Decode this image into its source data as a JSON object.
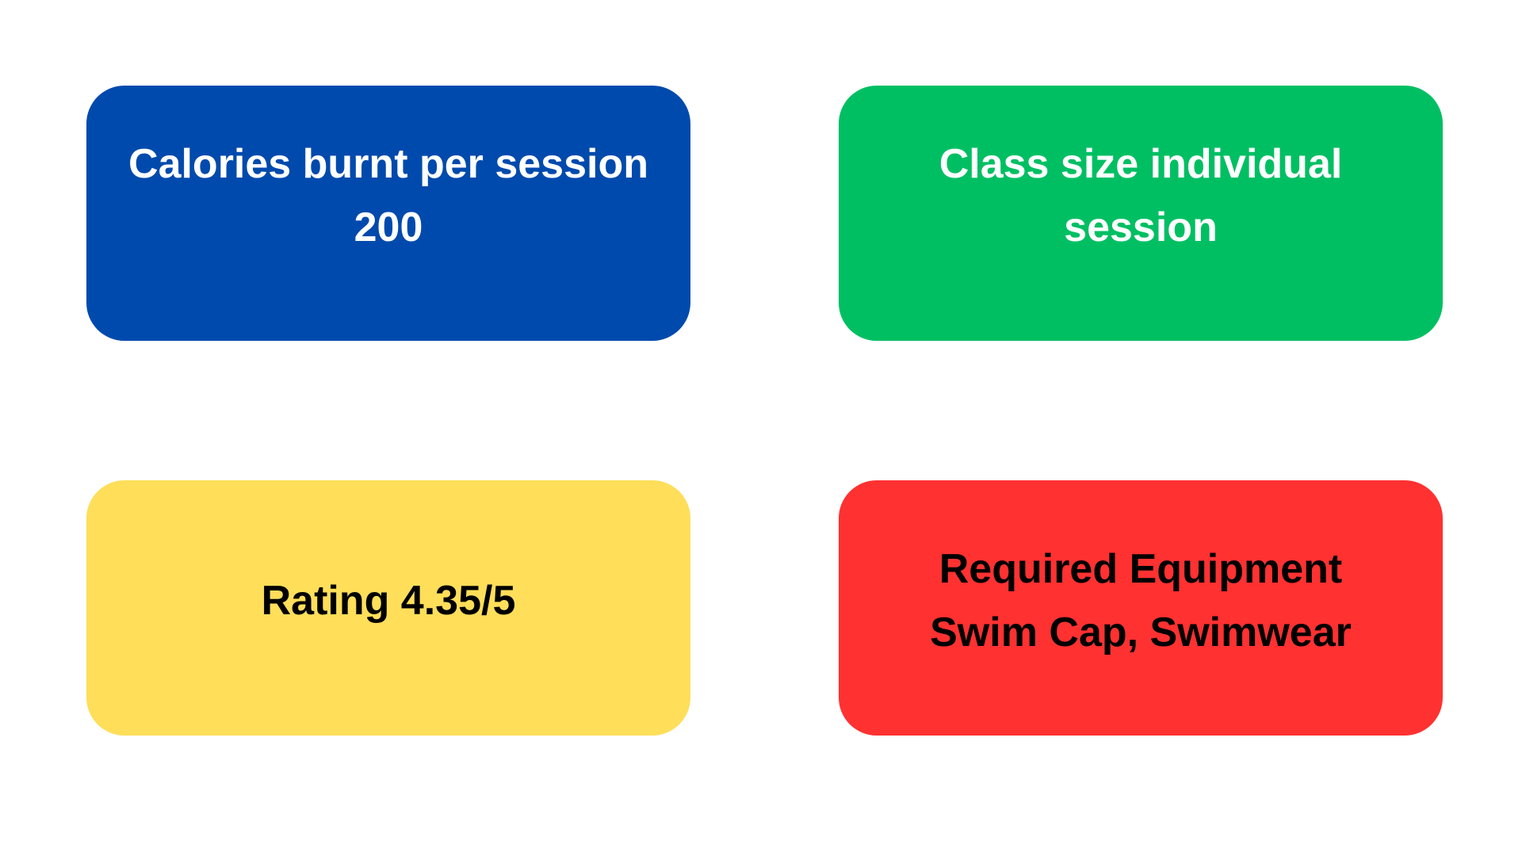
{
  "cards": {
    "calories": {
      "line1": "Calories burnt per session",
      "line2": "200",
      "color": "#004aad"
    },
    "class_size": {
      "line1": "Class size individual",
      "line2": "session",
      "color": "#00bf63"
    },
    "rating": {
      "line1": "Rating 4.35/5",
      "color": "#ffde59"
    },
    "equipment": {
      "line1": "Required Equipment",
      "line2": "Swim Cap, Swimwear",
      "color": "#ff3131"
    }
  }
}
